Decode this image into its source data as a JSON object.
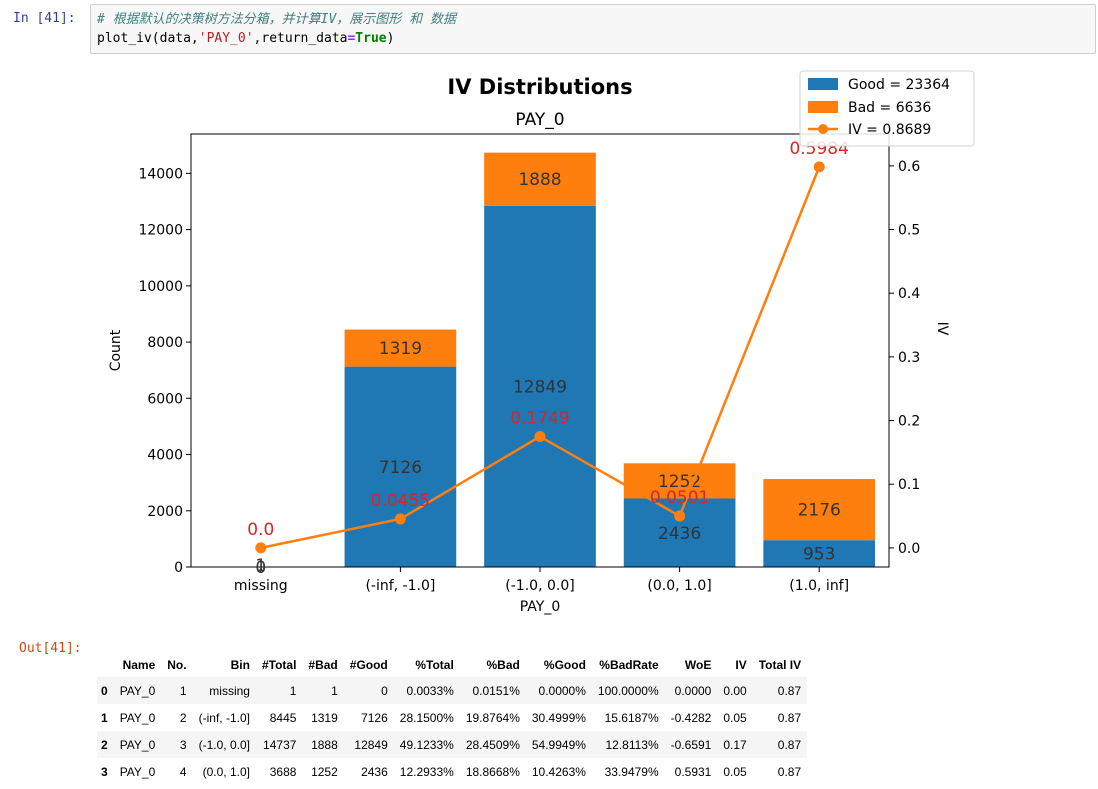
{
  "cell": {
    "in_prompt": "In  [41]:",
    "out_prompt": "Out[41]:",
    "code_comment": "# 根据默认的决策树方法分箱，并计算IV，展示图形 和 数据",
    "code_fn": "plot_iv(data,",
    "code_str": "'PAY_0'",
    "code_comma": ",return_data",
    "code_eq": "=",
    "code_kw": "True",
    "code_close": ")"
  },
  "colors": {
    "good": "#1f77b4",
    "bad": "#ff7f0e",
    "iv_line": "#ff7f0e",
    "iv_label": "#d62728"
  },
  "chart_data": {
    "type": "bar",
    "title": "IV Distributions",
    "subtitle": "PAY_0",
    "xlabel": "PAY_0",
    "ylabel": "Count",
    "y2label": "IV",
    "categories": [
      "missing",
      "(-inf, -1.0]",
      "(-1.0, 0.0]",
      "(0.0, 1.0]",
      "(1.0, inf]"
    ],
    "series": [
      {
        "name": "Good =  23364",
        "values": [
          0,
          7126,
          12849,
          2436,
          953
        ]
      },
      {
        "name": "Bad =  6636",
        "values": [
          1,
          1319,
          1888,
          1252,
          2176
        ]
      }
    ],
    "line": {
      "name": "IV = 0.8689",
      "values": [
        0.0,
        0.0455,
        0.1749,
        0.0501,
        0.5984
      ]
    },
    "bar_value_labels": {
      "good": [
        "0",
        "7126",
        "12849",
        "2436",
        "953"
      ],
      "bad": [
        "1",
        "1319",
        "1888",
        "1252",
        "2176"
      ]
    },
    "line_value_labels": [
      "0.0",
      "0.0455",
      "0.1749",
      "0.0501",
      "0.5984"
    ],
    "ylim": [
      0,
      15400
    ],
    "y2lim": [
      -0.03,
      0.65
    ],
    "yticks": [
      "0",
      "2000",
      "4000",
      "6000",
      "8000",
      "10000",
      "12000",
      "14000"
    ],
    "y2ticks": [
      "0.0",
      "0.1",
      "0.2",
      "0.3",
      "0.4",
      "0.5",
      "0.6"
    ],
    "legend": "top-right",
    "stacked": true
  },
  "table": {
    "columns": [
      "",
      "Name",
      "No.",
      "Bin",
      "#Total",
      "#Bad",
      "#Good",
      "%Total",
      "%Bad",
      "%Good",
      "%BadRate",
      "WoE",
      "IV",
      "Total IV"
    ],
    "rows": [
      [
        "0",
        "PAY_0",
        "1",
        "missing",
        "1",
        "1",
        "0",
        "0.0033%",
        "0.0151%",
        "0.0000%",
        "100.0000%",
        "0.0000",
        "0.00",
        "0.87"
      ],
      [
        "1",
        "PAY_0",
        "2",
        "(-inf, -1.0]",
        "8445",
        "1319",
        "7126",
        "28.1500%",
        "19.8764%",
        "30.4999%",
        "15.6187%",
        "-0.4282",
        "0.05",
        "0.87"
      ],
      [
        "2",
        "PAY_0",
        "3",
        "(-1.0, 0.0]",
        "14737",
        "1888",
        "12849",
        "49.1233%",
        "28.4509%",
        "54.9949%",
        "12.8113%",
        "-0.6591",
        "0.17",
        "0.87"
      ],
      [
        "3",
        "PAY_0",
        "4",
        "(0.0, 1.0]",
        "3688",
        "1252",
        "2436",
        "12.2933%",
        "18.8668%",
        "10.4263%",
        "33.9479%",
        "0.5931",
        "0.05",
        "0.87"
      ]
    ]
  }
}
